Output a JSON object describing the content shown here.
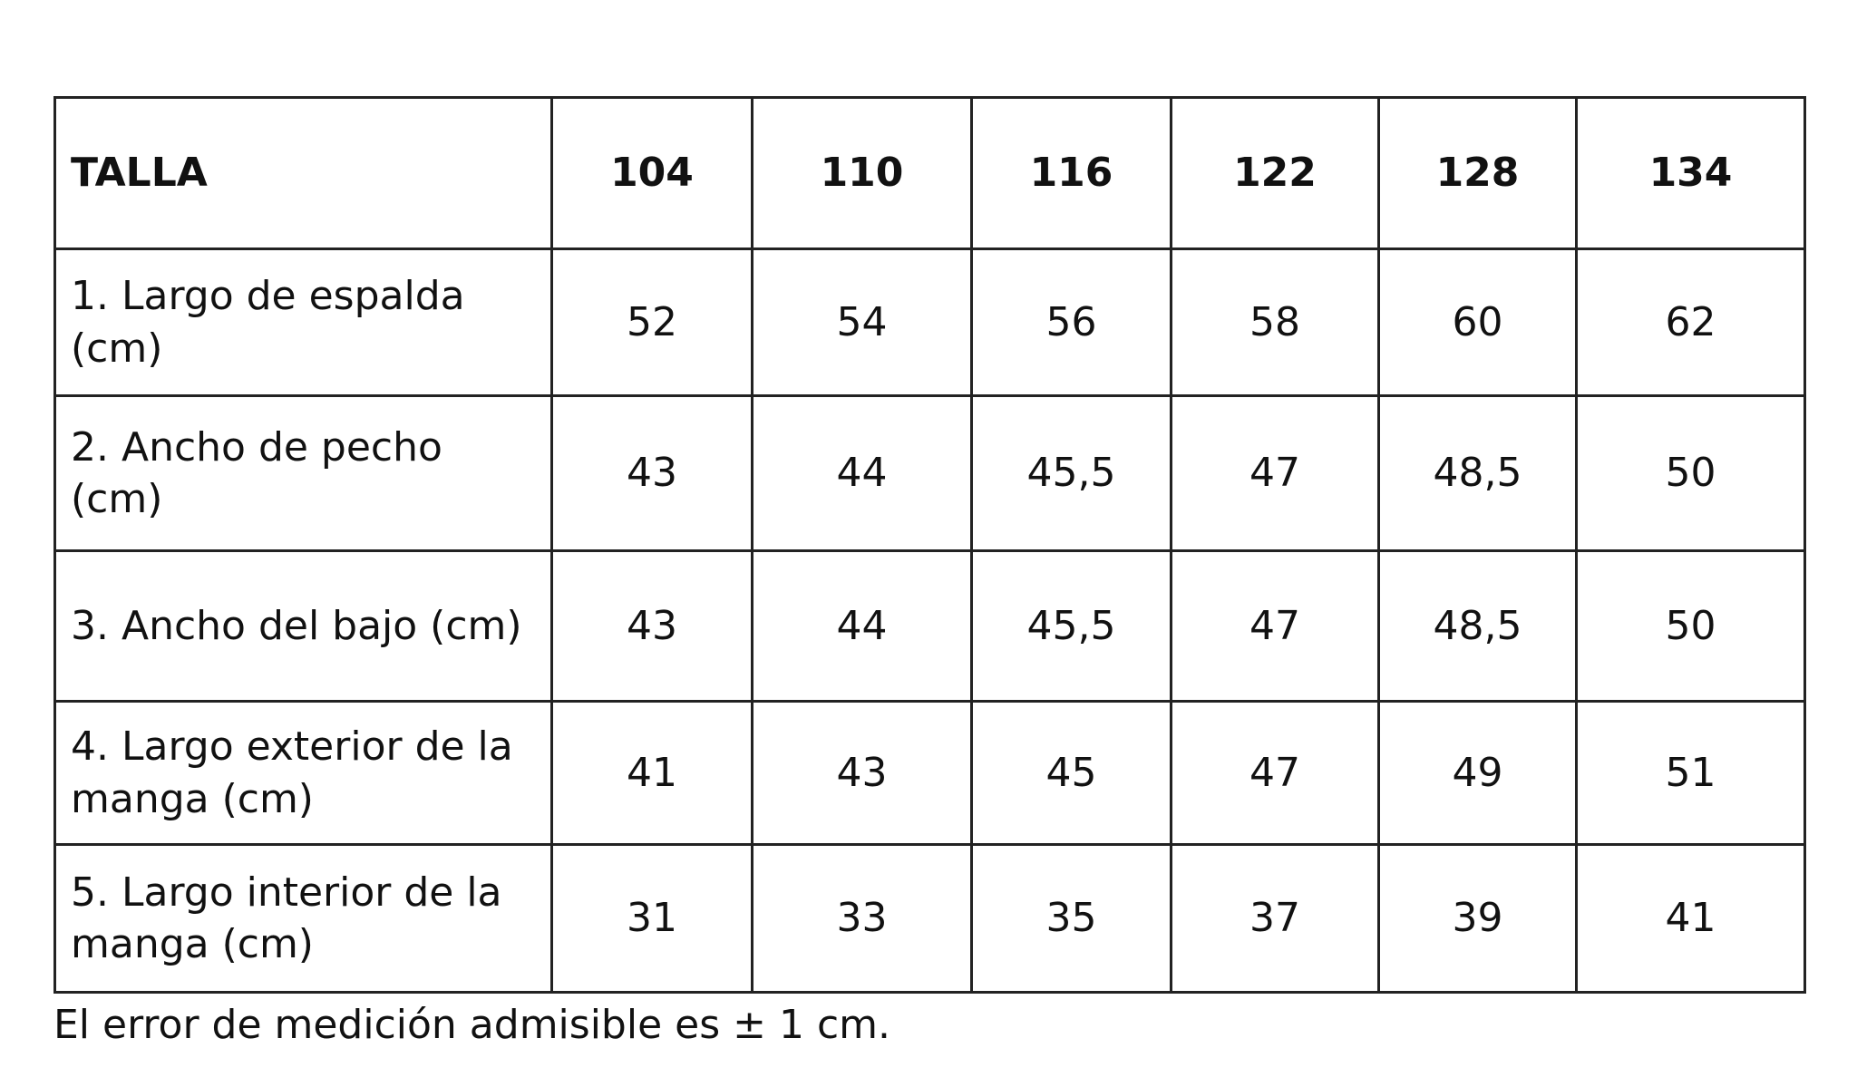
{
  "table": {
    "header": [
      "TALLA",
      "104",
      "110",
      "116",
      "122",
      "128",
      "134"
    ],
    "rows": [
      [
        "1. Largo de espalda (cm)",
        "52",
        "54",
        "56",
        "58",
        "60",
        "62"
      ],
      [
        "2. Ancho de pecho (cm)",
        "43",
        "44",
        "45,5",
        "47",
        "48,5",
        "50"
      ],
      [
        "3. Ancho del bajo (cm)",
        "43",
        "44",
        "45,5",
        "47",
        "48,5",
        "50"
      ],
      [
        "4. Largo exterior de la manga (cm)",
        "41",
        "43",
        "45",
        "47",
        "49",
        "51"
      ],
      [
        "5. Largo interior de la manga (cm)",
        "31",
        "33",
        "35",
        "37",
        "39",
        "41"
      ]
    ]
  },
  "footnote": "El error de medición admisible es ± 1 cm."
}
